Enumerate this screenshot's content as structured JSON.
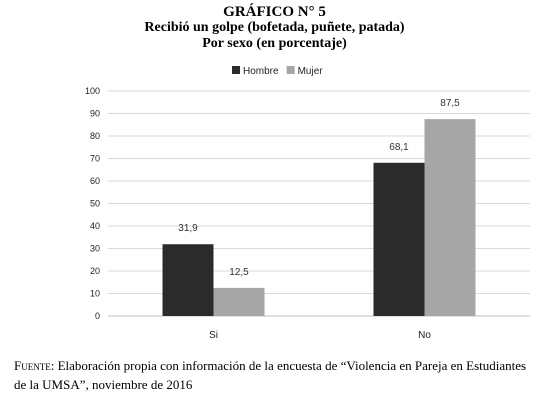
{
  "figure_number": "GRÁFICO N° 5",
  "chart_data": {
    "type": "bar",
    "title": "Recibió un golpe (bofetada, puñete, patada)",
    "subtitle": "Por sexo (en porcentaje)",
    "categories": [
      "Si",
      "No"
    ],
    "series": [
      {
        "name": "Hombre",
        "values": [
          31.9,
          68.1
        ],
        "labels": [
          "31,9",
          "68,1"
        ],
        "color": "#2b2b2b"
      },
      {
        "name": "Mujer",
        "values": [
          12.5,
          87.5
        ],
        "labels": [
          "12,5",
          "87,5"
        ],
        "color": "#a6a6a6"
      }
    ],
    "ylim": [
      0,
      100
    ],
    "yticks": [
      0,
      10,
      20,
      30,
      40,
      50,
      60,
      70,
      80,
      90,
      100
    ],
    "grid": true,
    "legend_position": "top"
  },
  "source": {
    "label": "Fuente:",
    "text": "Elaboración propia con información de la encuesta de “Violencia en Pareja en Estudiantes de la UMSA”, noviembre de 2016"
  }
}
